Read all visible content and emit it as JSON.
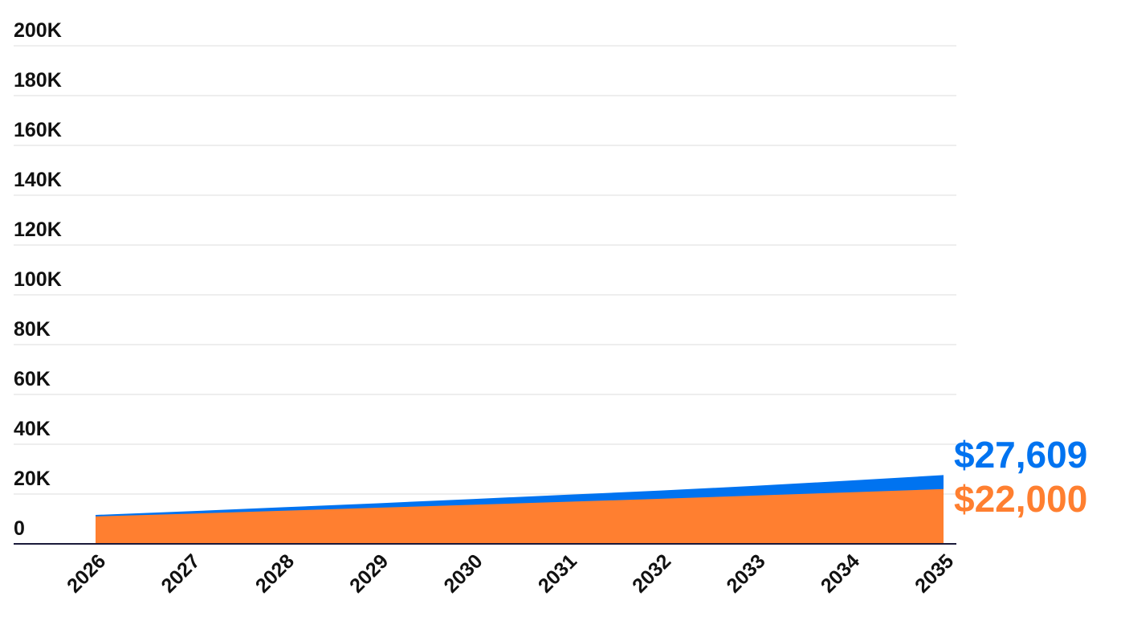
{
  "chart_data": {
    "type": "area",
    "stacked": false,
    "x": [
      "2026",
      "2027",
      "2028",
      "2029",
      "2030",
      "2031",
      "2032",
      "2033",
      "2034",
      "2035"
    ],
    "series": [
      {
        "color": "#0073f0",
        "values": [
          11600,
          13100,
          14700,
          16300,
          18000,
          19700,
          21400,
          23300,
          25400,
          27609
        ]
      },
      {
        "color": "#ff7f30",
        "values": [
          11000,
          12100,
          13300,
          14500,
          15700,
          16900,
          18100,
          19400,
          20700,
          22000
        ]
      }
    ],
    "ylim": [
      0,
      200000
    ],
    "yticks": [
      0,
      20000,
      40000,
      60000,
      80000,
      100000,
      120000,
      140000,
      160000,
      180000,
      200000
    ],
    "ytick_labels": [
      "0",
      "20K",
      "40K",
      "60K",
      "80K",
      "100K",
      "120K",
      "140K",
      "160K",
      "180K",
      "200K"
    ],
    "grid": true,
    "end_labels": [
      {
        "text": "$27,609",
        "color": "#0073f0"
      },
      {
        "text": "$22,000",
        "color": "#ff7f30"
      }
    ]
  }
}
